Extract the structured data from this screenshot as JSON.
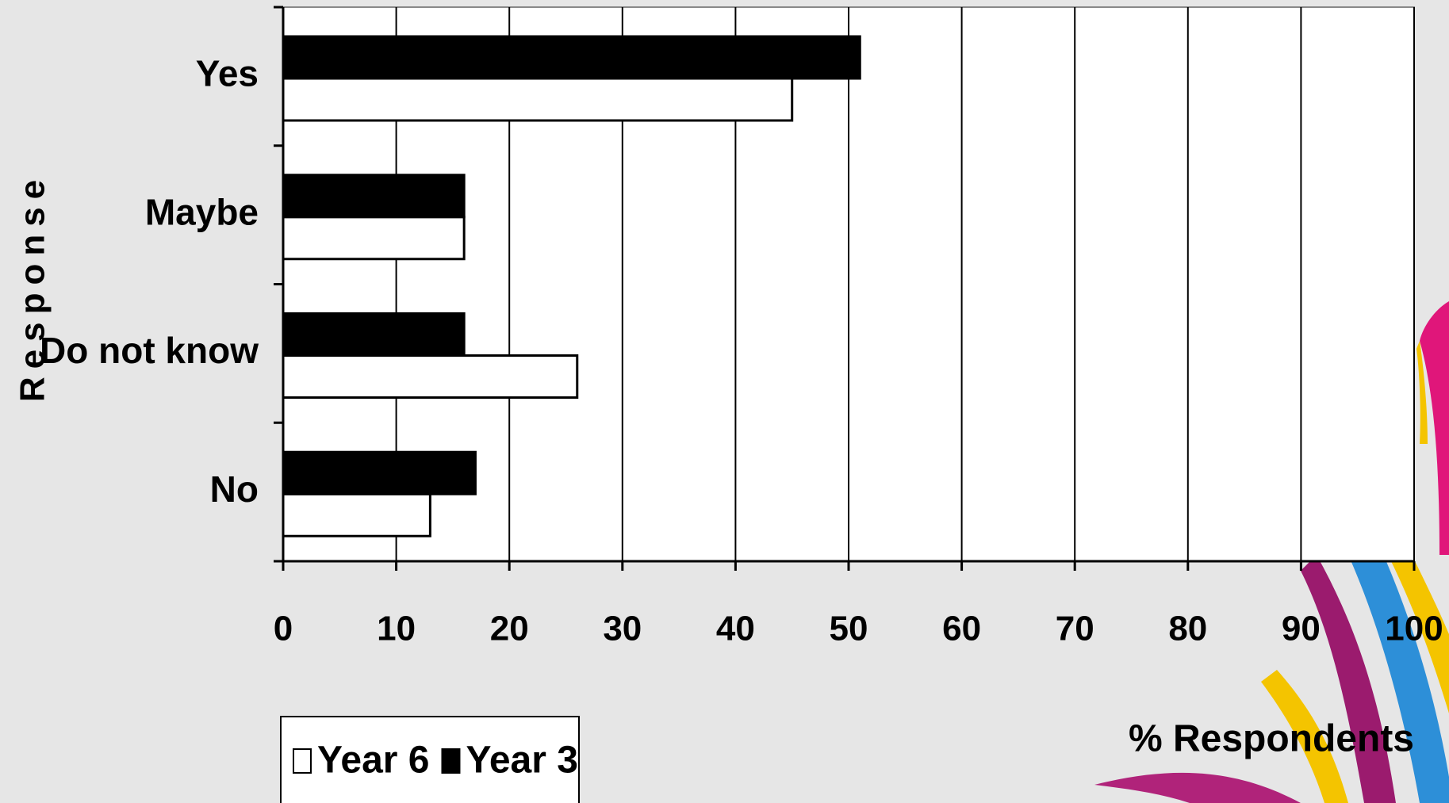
{
  "chart_data": {
    "type": "hbar",
    "categories": [
      "Yes",
      "Maybe",
      "Do not know",
      "No"
    ],
    "series": [
      {
        "name": "Year 6",
        "color": "#ffffff",
        "values": [
          45,
          16,
          26,
          13
        ]
      },
      {
        "name": "Year 3",
        "color": "#000000",
        "values": [
          51,
          16,
          16,
          17
        ]
      }
    ],
    "xlim": [
      0,
      100
    ],
    "xticks": [
      0,
      10,
      20,
      30,
      40,
      50,
      60,
      70,
      80,
      90,
      100
    ],
    "x_label": "% Respondents",
    "y_label": "Response",
    "grid": true,
    "legend": "bottom-left"
  }
}
